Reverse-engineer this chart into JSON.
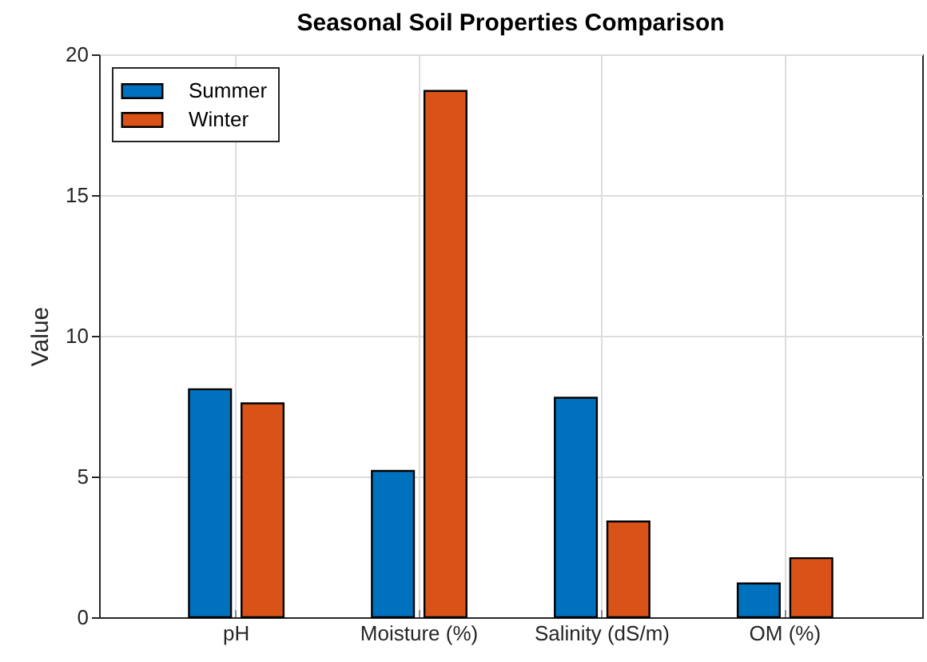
{
  "chart_data": {
    "type": "bar",
    "title": "Seasonal Soil Properties Comparison",
    "ylabel": "Value",
    "categories": [
      "pH",
      "Moisture (%)",
      "Salinity (dS/m)",
      "OM (%)"
    ],
    "series": [
      {
        "name": "Summer",
        "color": "#0072bd",
        "values": [
          8.1,
          5.2,
          7.8,
          1.2
        ]
      },
      {
        "name": "Winter",
        "color": "#d95319",
        "values": [
          7.6,
          18.7,
          3.4,
          2.1
        ]
      }
    ],
    "ylim": [
      0,
      20
    ],
    "yticks": [
      0,
      5,
      10,
      15,
      20
    ],
    "grid": true,
    "legend": "top left"
  }
}
